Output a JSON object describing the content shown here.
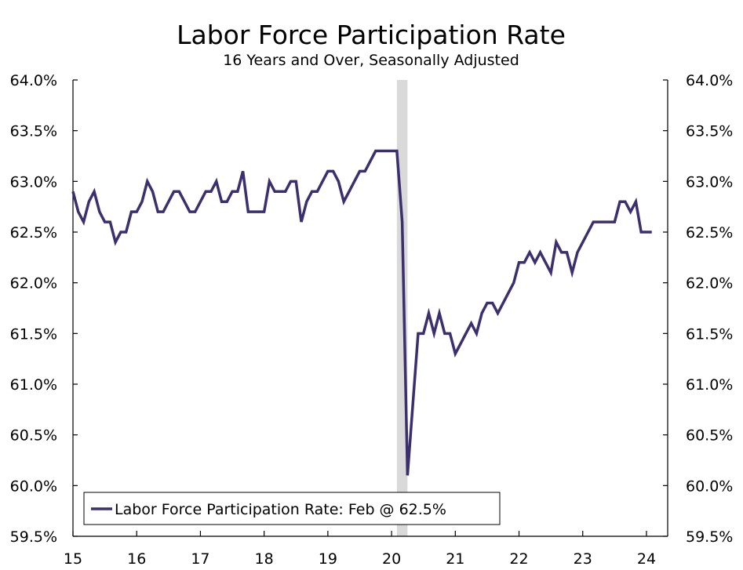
{
  "chart_data": {
    "type": "line",
    "title": "Labor Force Participation Rate",
    "subtitle": "16 Years and Over, Seasonally Adjusted",
    "xlabel": "",
    "ylabel": "",
    "xlim": [
      2015.0,
      2024.333
    ],
    "ylim": [
      59.5,
      64.0
    ],
    "y_ticks": [
      "59.5%",
      "60.0%",
      "60.5%",
      "61.0%",
      "61.5%",
      "62.0%",
      "62.5%",
      "63.0%",
      "63.5%",
      "64.0%"
    ],
    "x_ticks": [
      "15",
      "16",
      "17",
      "18",
      "19",
      "20",
      "21",
      "22",
      "23",
      "24"
    ],
    "grid": false,
    "legend_placement": "bottom-left",
    "recession_shading": {
      "start": "2020-02",
      "end": "2020-04",
      "color": "#d9d9d9"
    },
    "line_color": "#3b2f6e",
    "series": [
      {
        "name": "Labor Force Participation Rate: Feb @ 62.5%",
        "start": "2015-01",
        "values": [
          62.9,
          62.7,
          62.6,
          62.8,
          62.9,
          62.7,
          62.6,
          62.6,
          62.4,
          62.5,
          62.5,
          62.7,
          62.7,
          62.8,
          63.0,
          62.9,
          62.7,
          62.7,
          62.8,
          62.9,
          62.9,
          62.8,
          62.7,
          62.7,
          62.8,
          62.9,
          62.9,
          63.0,
          62.8,
          62.8,
          62.9,
          62.9,
          63.1,
          62.7,
          62.7,
          62.7,
          62.7,
          63.0,
          62.9,
          62.9,
          62.9,
          63.0,
          63.0,
          62.6,
          62.8,
          62.9,
          62.9,
          63.0,
          63.1,
          63.1,
          63.0,
          62.8,
          62.9,
          63.0,
          63.1,
          63.1,
          63.2,
          63.3,
          63.3,
          63.3,
          63.3,
          63.3,
          62.6,
          60.1,
          60.8,
          61.5,
          61.5,
          61.7,
          61.5,
          61.7,
          61.5,
          61.5,
          61.3,
          61.4,
          61.5,
          61.6,
          61.5,
          61.7,
          61.8,
          61.8,
          61.7,
          61.8,
          61.9,
          62.0,
          62.2,
          62.2,
          62.3,
          62.2,
          62.3,
          62.2,
          62.1,
          62.4,
          62.3,
          62.3,
          62.1,
          62.3,
          62.4,
          62.5,
          62.6,
          62.6,
          62.6,
          62.6,
          62.6,
          62.8,
          62.8,
          62.7,
          62.8,
          62.5,
          62.5,
          62.5
        ]
      }
    ]
  }
}
